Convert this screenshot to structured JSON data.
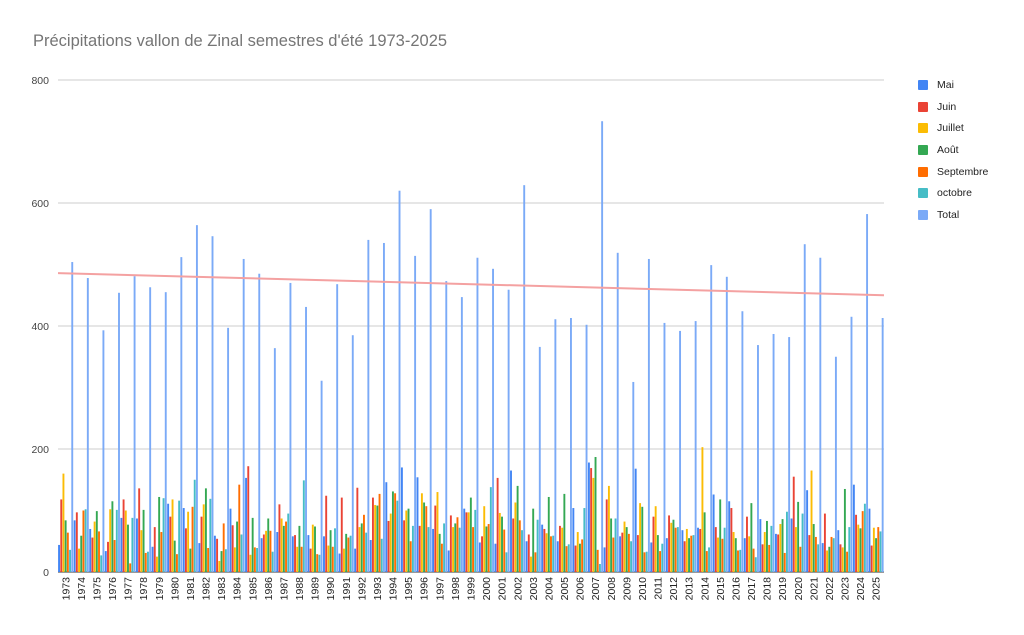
{
  "chart_data": {
    "type": "bar",
    "title": "Précipitations vallon de Zinal semestres d'été 1973-2025",
    "xlabel": "",
    "ylabel": "",
    "ylim": [
      0,
      800
    ],
    "yticks": [
      0,
      200,
      400,
      600,
      800
    ],
    "grid": true,
    "legend_position": "right",
    "categories": [
      "1973",
      "1974",
      "1975",
      "1976",
      "1977",
      "1978",
      "1979",
      "1980",
      "1981",
      "1982",
      "1983",
      "1984",
      "1985",
      "1986",
      "1987",
      "1988",
      "1989",
      "1990",
      "1991",
      "1992",
      "1993",
      "1994",
      "1995",
      "1996",
      "1997",
      "1998",
      "1999",
      "2000",
      "2001",
      "2002",
      "2003",
      "2004",
      "2005",
      "2006",
      "2007",
      "2008",
      "2009",
      "2010",
      "2011",
      "2012",
      "2013",
      "2014",
      "2015",
      "2016",
      "2017",
      "2018",
      "2019",
      "2020",
      "2021",
      "2022",
      "2023",
      "2024",
      "2025"
    ],
    "series": [
      {
        "name": "Mai",
        "color": "#4285f4",
        "values": [
          44,
          84,
          70,
          34,
          88,
          87,
          41,
          111,
          104,
          47,
          59,
          103,
          153,
          55,
          65,
          58,
          60,
          58,
          30,
          38,
          52,
          146,
          170,
          154,
          70,
          35,
          103,
          48,
          46,
          165,
          50,
          77,
          50,
          104,
          178,
          40,
          58,
          168,
          48,
          55,
          68,
          72,
          126,
          115,
          55,
          86,
          62,
          87,
          133,
          47,
          68,
          142,
          103
        ]
      },
      {
        "name": "Juin",
        "color": "#ea4335",
        "values": [
          118,
          97,
          56,
          49,
          118,
          136,
          73,
          90,
          71,
          90,
          54,
          76,
          172,
          61,
          110,
          60,
          38,
          124,
          121,
          137,
          121,
          83,
          84,
          75,
          108,
          92,
          97,
          58,
          153,
          87,
          61,
          70,
          75,
          43,
          169,
          118,
          64,
          60,
          90,
          92,
          50,
          70,
          73,
          104,
          90,
          45,
          61,
          155,
          60,
          95,
          45,
          93,
          43
        ]
      },
      {
        "name": "Juillet",
        "color": "#fbbc04",
        "values": [
          160,
          38,
          82,
          102,
          100,
          68,
          25,
          118,
          98,
          110,
          18,
          40,
          28,
          67,
          87,
          41,
          77,
          43,
          38,
          73,
          109,
          95,
          100,
          128,
          130,
          73,
          97,
          107,
          96,
          113,
          25,
          63,
          72,
          65,
          153,
          140,
          82,
          112,
          107,
          80,
          70,
          203,
          56,
          65,
          58,
          65,
          78,
          73,
          165,
          35,
          40,
          77,
          72
        ]
      },
      {
        "name": "Août",
        "color": "#34a853",
        "values": [
          84,
          59,
          99,
          115,
          77,
          101,
          122,
          51,
          38,
          136,
          34,
          82,
          88,
          87,
          75,
          75,
          74,
          68,
          62,
          79,
          108,
          131,
          103,
          113,
          62,
          79,
          121,
          74,
          90,
          140,
          103,
          122,
          127,
          46,
          187,
          87,
          73,
          106,
          60,
          85,
          55,
          97,
          118,
          55,
          112,
          83,
          86,
          114,
          78,
          41,
          135,
          71,
          55
        ]
      },
      {
        "name": "Septembre",
        "color": "#ff6d01",
        "values": [
          64,
          100,
          66,
          52,
          14,
          31,
          65,
          29,
          106,
          39,
          79,
          142,
          40,
          67,
          82,
          41,
          29,
          41,
          56,
          93,
          127,
          128,
          50,
          107,
          46,
          89,
          73,
          78,
          69,
          84,
          32,
          58,
          42,
          53,
          36,
          56,
          62,
          32,
          34,
          72,
          59,
          34,
          54,
          35,
          38,
          44,
          31,
          41,
          57,
          57,
          33,
          99,
          73
        ]
      },
      {
        "name": "octobre",
        "color": "#46bdc6",
        "values": [
          36,
          102,
          27,
          101,
          88,
          33,
          120,
          116,
          150,
          119,
          37,
          61,
          39,
          33,
          95,
          149,
          28,
          71,
          59,
          64,
          54,
          116,
          75,
          73,
          79,
          72,
          101,
          138,
          32,
          68,
          85,
          59,
          45,
          104,
          13,
          87,
          50,
          33,
          46,
          73,
          60,
          40,
          72,
          36,
          24,
          75,
          98,
          95,
          45,
          55,
          73,
          111,
          66
        ]
      },
      {
        "name": "Total",
        "color": "#7baaf7",
        "values": [
          504,
          478,
          393,
          454,
          481,
          463,
          455,
          512,
          564,
          546,
          397,
          509,
          485,
          364,
          470,
          431,
          311,
          468,
          385,
          540,
          535,
          620,
          514,
          590,
          473,
          447,
          511,
          493,
          459,
          629,
          366,
          411,
          413,
          402,
          733,
          519,
          309,
          509,
          405,
          392,
          408,
          499,
          480,
          424,
          369,
          387,
          382,
          533,
          511,
          350,
          415,
          582,
          413
        ]
      }
    ],
    "trendline": {
      "series": "Total",
      "color": "#f4a1a1",
      "start_value": 486,
      "end_value": 450
    }
  },
  "legend": {
    "items": [
      {
        "label": "Mai",
        "color": "#4285f4"
      },
      {
        "label": "Juin",
        "color": "#ea4335"
      },
      {
        "label": "Juillet",
        "color": "#fbbc04"
      },
      {
        "label": "Août",
        "color": "#34a853"
      },
      {
        "label": "Septembre",
        "color": "#ff6d01"
      },
      {
        "label": "octobre",
        "color": "#46bdc6"
      },
      {
        "label": "Total",
        "color": "#7baaf7"
      }
    ]
  }
}
